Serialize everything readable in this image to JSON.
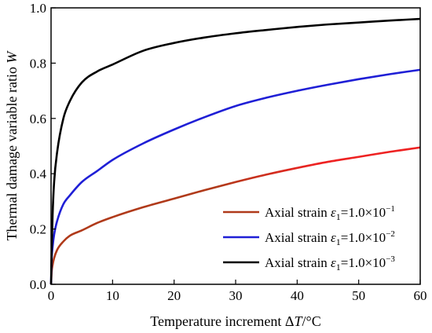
{
  "chart_data": {
    "type": "line",
    "title": "",
    "xlabel": "Temperature increment ΔT/°C",
    "xlabel_parts": {
      "text": "Temperature increment Δ",
      "var": "T",
      "unit": "/°C"
    },
    "ylabel": "Thermal damage variable ratio W",
    "ylabel_parts": {
      "text": "Thermal damage variable ratio ",
      "var": "W"
    },
    "xlim": [
      0,
      60
    ],
    "ylim": [
      0,
      1.0
    ],
    "xticks": [
      0,
      10,
      20,
      30,
      40,
      50,
      60
    ],
    "yticks": [
      0.0,
      0.2,
      0.4,
      0.6,
      0.8,
      1.0
    ],
    "xtick_labels": [
      "0",
      "10",
      "20",
      "30",
      "40",
      "50",
      "60"
    ],
    "ytick_labels": [
      "0.0",
      "0.2",
      "0.4",
      "0.6",
      "0.8",
      "1.0"
    ],
    "grid": false,
    "legend_position": "bottom-right",
    "x": [
      0,
      0.1,
      0.25,
      0.5,
      1,
      2,
      3,
      5,
      7.5,
      10,
      15,
      20,
      25,
      30,
      35,
      40,
      45,
      50,
      55,
      60
    ],
    "series": [
      {
        "name": "Axial strain ε1=1.0×10⁻¹",
        "legend_parts": {
          "text": "Axial strain ",
          "var": "ε",
          "sub": "1",
          "eq": "=1.0×10",
          "sup": "−1"
        },
        "color": "#b03a1a",
        "tail_color": "#ee2222",
        "values": [
          0,
          0.045,
          0.07,
          0.095,
          0.125,
          0.155,
          0.175,
          0.195,
          0.222,
          0.243,
          0.279,
          0.31,
          0.341,
          0.37,
          0.397,
          0.421,
          0.443,
          0.461,
          0.479,
          0.495
        ]
      },
      {
        "name": "Axial strain ε1=1.0×10⁻²",
        "legend_parts": {
          "text": "Axial strain ",
          "var": "ε",
          "sub": "1",
          "eq": "=1.0×10",
          "sup": "−2"
        },
        "color": "#1f1fd6",
        "values": [
          0,
          0.09,
          0.135,
          0.18,
          0.23,
          0.29,
          0.32,
          0.37,
          0.41,
          0.45,
          0.51,
          0.56,
          0.605,
          0.645,
          0.675,
          0.7,
          0.722,
          0.742,
          0.76,
          0.776
        ]
      },
      {
        "name": "Axial strain ε1=1.0×10⁻³",
        "legend_parts": {
          "text": "Axial strain ",
          "var": "ε",
          "sub": "1",
          "eq": "=1.0×10",
          "sup": "−3"
        },
        "color": "#000000",
        "values": [
          0,
          0.12,
          0.25,
          0.37,
          0.48,
          0.6,
          0.66,
          0.73,
          0.77,
          0.795,
          0.845,
          0.873,
          0.893,
          0.908,
          0.92,
          0.931,
          0.94,
          0.947,
          0.954,
          0.96
        ]
      }
    ]
  }
}
